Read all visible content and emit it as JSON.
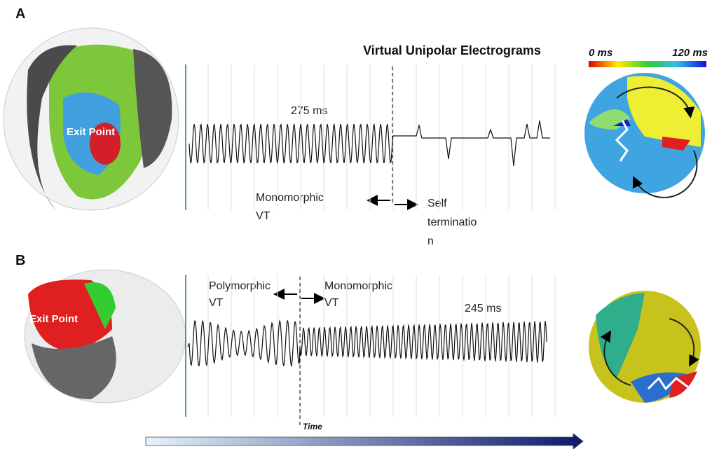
{
  "panel_a": {
    "label": "A",
    "heart_label": "Exit Point",
    "title": "Virtual Unipolar Electrograms",
    "colorbar": {
      "min_label": "0 ms",
      "max_label": "120 ms"
    },
    "cycle_label": "275 ms",
    "left_annotation": [
      "Monomorphic",
      "VT"
    ],
    "right_annotation": [
      "Self",
      "terminatio",
      "n"
    ]
  },
  "panel_b": {
    "label": "B",
    "heart_label": "Exit Point",
    "cycle_label": "245 ms",
    "left_annotation": [
      "Polymorphic",
      "VT"
    ],
    "right_annotation": [
      "Monomorphic",
      "VT"
    ]
  },
  "time_axis": {
    "label": "Time"
  }
}
